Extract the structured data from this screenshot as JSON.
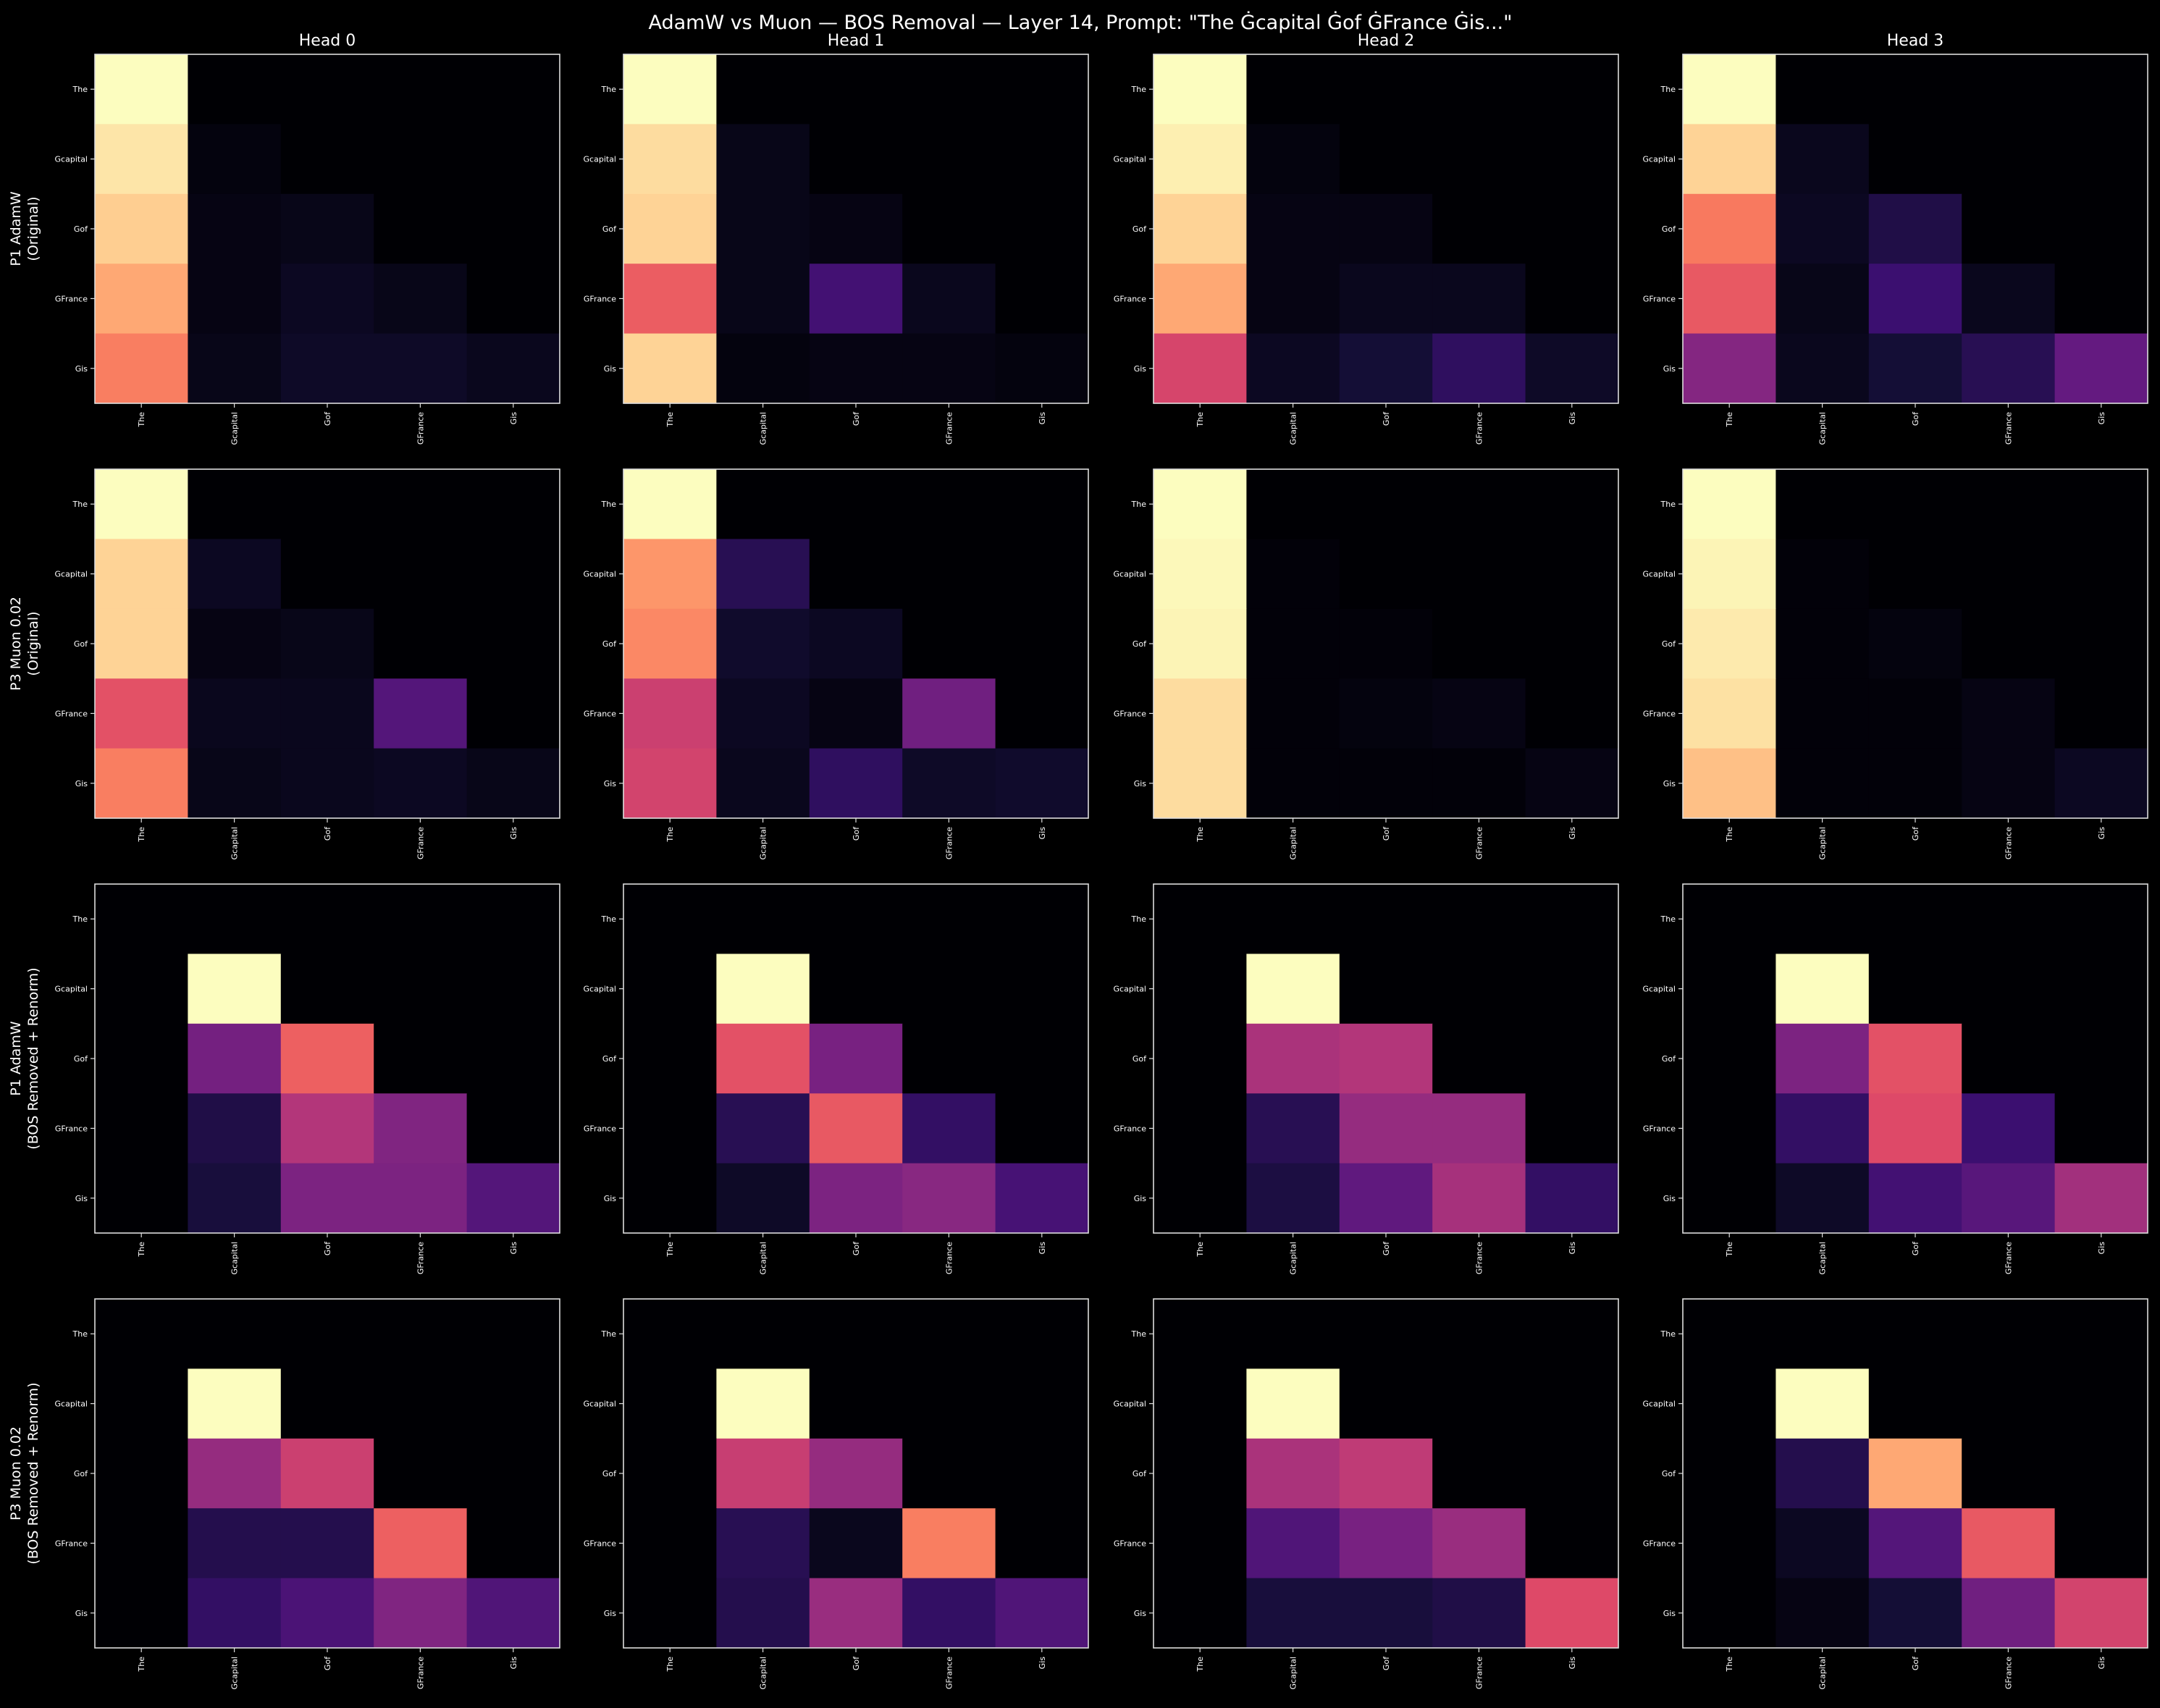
{
  "title": "AdamW vs Muon — BOS Removal — Layer 14, Prompt: \"The Ġcapital Ġof ĠFrance Ġis...\"",
  "column_titles": [
    "Head 0",
    "Head 1",
    "Head 2",
    "Head 3"
  ],
  "row_labels": [
    [
      "P1 AdamW",
      "(Original)"
    ],
    [
      "P3 Muon 0.02",
      "(Original)"
    ],
    [
      "P1 AdamW",
      "(BOS Removed + Renorm)"
    ],
    [
      "P3 Muon 0.02",
      "(BOS Removed + Renorm)"
    ]
  ],
  "tokens": [
    "The",
    "Gcapital",
    "Gof",
    "GFrance",
    "Gis"
  ],
  "colormap": "magma",
  "chart_data": {
    "type": "heatmap",
    "title": "AdamW vs Muon — BOS Removal — Layer 14, Prompt: \"The Ġcapital Ġof ĠFrance Ġis...\"",
    "x_tick_labels": [
      "The",
      "Gcapital",
      "Gof",
      "GFrance",
      "Gis"
    ],
    "y_tick_labels": [
      "The",
      "Gcapital",
      "Gof",
      "GFrance",
      "Gis"
    ],
    "value_range": [
      0,
      1
    ],
    "panels": [
      [
        [
          [
            1.0,
            0,
            0,
            0,
            0
          ],
          [
            0.95,
            0.02,
            0,
            0,
            0
          ],
          [
            0.9,
            0.03,
            0.04,
            0,
            0
          ],
          [
            0.82,
            0.03,
            0.06,
            0.04,
            0
          ],
          [
            0.73,
            0.04,
            0.07,
            0.07,
            0.05
          ]
        ],
        [
          [
            1.0,
            0,
            0,
            0,
            0
          ],
          [
            0.93,
            0.04,
            0,
            0,
            0
          ],
          [
            0.91,
            0.04,
            0.03,
            0,
            0
          ],
          [
            0.65,
            0.04,
            0.22,
            0.05,
            0
          ],
          [
            0.91,
            0.02,
            0.03,
            0.03,
            0.02
          ]
        ],
        [
          [
            1.0,
            0,
            0,
            0,
            0
          ],
          [
            0.97,
            0.02,
            0,
            0,
            0
          ],
          [
            0.91,
            0.03,
            0.03,
            0,
            0
          ],
          [
            0.82,
            0.03,
            0.05,
            0.05,
            0
          ],
          [
            0.58,
            0.06,
            0.1,
            0.17,
            0.07
          ]
        ],
        [
          [
            1.0,
            0,
            0,
            0,
            0
          ],
          [
            0.91,
            0.05,
            0,
            0,
            0
          ],
          [
            0.72,
            0.06,
            0.13,
            0,
            0
          ],
          [
            0.64,
            0.04,
            0.2,
            0.05,
            0
          ],
          [
            0.38,
            0.05,
            0.1,
            0.15,
            0.3
          ]
        ]
      ],
      [
        [
          [
            1.0,
            0,
            0,
            0,
            0
          ],
          [
            0.91,
            0.06,
            0,
            0,
            0
          ],
          [
            0.91,
            0.03,
            0.04,
            0,
            0
          ],
          [
            0.62,
            0.05,
            0.05,
            0.26,
            0
          ],
          [
            0.73,
            0.04,
            0.05,
            0.06,
            0.04
          ]
        ],
        [
          [
            1.0,
            0,
            0,
            0,
            0
          ],
          [
            0.78,
            0.15,
            0,
            0,
            0
          ],
          [
            0.75,
            0.08,
            0.06,
            0,
            0
          ],
          [
            0.55,
            0.06,
            0.03,
            0.33,
            0
          ],
          [
            0.57,
            0.05,
            0.17,
            0.07,
            0.08
          ]
        ],
        [
          [
            1.0,
            0,
            0,
            0,
            0
          ],
          [
            0.99,
            0.01,
            0,
            0,
            0
          ],
          [
            0.98,
            0.01,
            0.01,
            0,
            0
          ],
          [
            0.93,
            0.01,
            0.02,
            0.03,
            0
          ],
          [
            0.93,
            0.01,
            0.01,
            0.01,
            0.03
          ]
        ],
        [
          [
            1.0,
            0,
            0,
            0,
            0
          ],
          [
            0.98,
            0.01,
            0,
            0,
            0
          ],
          [
            0.96,
            0.01,
            0.02,
            0,
            0
          ],
          [
            0.94,
            0.01,
            0.01,
            0.03,
            0
          ],
          [
            0.87,
            0.01,
            0.01,
            0.03,
            0.06
          ]
        ]
      ],
      [
        [
          [
            0,
            0,
            0,
            0,
            0
          ],
          [
            0,
            1.0,
            0,
            0,
            0
          ],
          [
            0,
            0.34,
            0.66,
            0,
            0
          ],
          [
            0,
            0.13,
            0.49,
            0.37,
            0
          ],
          [
            0,
            0.11,
            0.36,
            0.36,
            0.26
          ]
        ],
        [
          [
            0,
            0,
            0,
            0,
            0
          ],
          [
            0,
            1.0,
            0,
            0,
            0
          ],
          [
            0,
            0.62,
            0.35,
            0,
            0
          ],
          [
            0,
            0.15,
            0.64,
            0.18,
            0
          ],
          [
            0,
            0.07,
            0.36,
            0.39,
            0.23
          ]
        ],
        [
          [
            0,
            0,
            0,
            0,
            0
          ],
          [
            0,
            1.0,
            0,
            0,
            0
          ],
          [
            0,
            0.47,
            0.49,
            0,
            0
          ],
          [
            0,
            0.15,
            0.42,
            0.42,
            0
          ],
          [
            0,
            0.12,
            0.29,
            0.46,
            0.18
          ]
        ],
        [
          [
            0,
            0,
            0,
            0,
            0
          ],
          [
            0,
            1.0,
            0,
            0,
            0
          ],
          [
            0,
            0.36,
            0.62,
            0,
            0
          ],
          [
            0,
            0.18,
            0.6,
            0.2,
            0
          ],
          [
            0,
            0.07,
            0.22,
            0.27,
            0.45
          ]
        ]
      ],
      [
        [
          [
            0,
            0,
            0,
            0,
            0
          ],
          [
            0,
            1.0,
            0,
            0,
            0
          ],
          [
            0,
            0.42,
            0.55,
            0,
            0
          ],
          [
            0,
            0.14,
            0.14,
            0.66,
            0
          ],
          [
            0,
            0.18,
            0.24,
            0.37,
            0.25
          ]
        ],
        [
          [
            0,
            0,
            0,
            0,
            0
          ],
          [
            0,
            1.0,
            0,
            0,
            0
          ],
          [
            0,
            0.54,
            0.42,
            0,
            0
          ],
          [
            0,
            0.15,
            0.05,
            0.73,
            0
          ],
          [
            0,
            0.14,
            0.43,
            0.18,
            0.25
          ]
        ],
        [
          [
            0,
            0,
            0,
            0,
            0
          ],
          [
            0,
            1.0,
            0,
            0,
            0
          ],
          [
            0,
            0.47,
            0.52,
            0,
            0
          ],
          [
            0,
            0.25,
            0.35,
            0.43,
            0
          ],
          [
            0,
            0.11,
            0.11,
            0.13,
            0.6
          ]
        ],
        [
          [
            0,
            0,
            0,
            0,
            0
          ],
          [
            0,
            1.0,
            0,
            0,
            0
          ],
          [
            0,
            0.14,
            0.82,
            0,
            0
          ],
          [
            0,
            0.06,
            0.26,
            0.64,
            0
          ],
          [
            0,
            0.03,
            0.1,
            0.33,
            0.57
          ]
        ]
      ]
    ]
  }
}
